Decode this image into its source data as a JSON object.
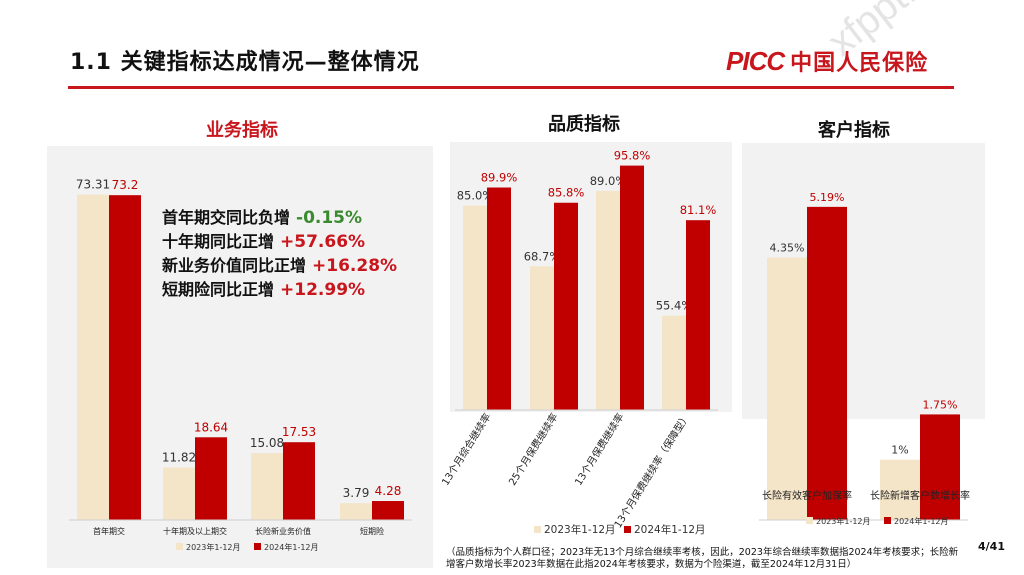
{
  "header": {
    "title": "1.1 关键指标达成情况—整体情况",
    "brand_latin": "PICC",
    "brand_cn": "中国人民保险",
    "watermark": "xfppt.com"
  },
  "sections": {
    "business": "业务指标",
    "quality": "品质指标",
    "customer": "客户指标"
  },
  "kpis": [
    {
      "label": "首年期交同比负增",
      "value": "-0.15%",
      "tone": "neg"
    },
    {
      "label": "十年期同比正增",
      "value": "+57.66%",
      "tone": "pos"
    },
    {
      "label": "新业务价值同比正增",
      "value": "+16.28%",
      "tone": "pos"
    },
    {
      "label": "短期险同比正增",
      "value": "+12.99%",
      "tone": "pos"
    }
  ],
  "colors": {
    "y2023": "#f5e5c8",
    "y2024": "#c00000",
    "accent": "#c8161d"
  },
  "chart_data": [
    {
      "type": "bar",
      "categories": [
        "首年期交",
        "十年期及以上期交",
        "长险新业务价值",
        "短期险"
      ],
      "series": [
        {
          "name": "2023年1-12月",
          "values": [
            73.31,
            11.82,
            15.08,
            3.79
          ],
          "labels": [
            "73.31",
            "11.82",
            "15.08",
            "3.79"
          ]
        },
        {
          "name": "2024年1-12月",
          "values": [
            73.2,
            18.64,
            17.53,
            4.28
          ],
          "labels": [
            "73.2",
            "18.64",
            "17.53",
            "4.28"
          ]
        }
      ],
      "ylim": [
        0,
        80
      ],
      "legend": "bottom"
    },
    {
      "type": "bar",
      "categories": [
        "13个月综合继续率",
        "25个月保费继续率",
        "13个月保费继续率",
        "13个月保费继续率（保障型）"
      ],
      "series": [
        {
          "name": "2023年1-12月",
          "values": [
            85.0,
            68.7,
            89.0,
            55.4
          ],
          "labels": [
            "85.0%",
            "68.7%",
            "89.0%",
            "55.4%"
          ]
        },
        {
          "name": "2024年1-12月",
          "values": [
            89.9,
            85.8,
            95.8,
            81.1
          ],
          "labels": [
            "89.9%",
            "85.8%",
            "95.8%",
            "81.1%"
          ]
        }
      ],
      "ylim": [
        30,
        100
      ],
      "legend": "bottom"
    },
    {
      "type": "bar",
      "categories": [
        "长险有效客户加保率",
        "长险新增客户数增长率"
      ],
      "series": [
        {
          "name": "2023年1-12月",
          "values": [
            4.35,
            1.0
          ],
          "labels": [
            "4.35%",
            "1%"
          ]
        },
        {
          "name": "2024年1-12月",
          "values": [
            5.19,
            1.75
          ],
          "labels": [
            "5.19%",
            "1.75%"
          ]
        }
      ],
      "ylim": [
        0,
        6
      ],
      "legend": "bottom"
    }
  ],
  "footnote": "（品质指标为个人群口径；2023年无13个月综合继续率考核，因此，2023年综合继续率数据指2024年考核要求；长险新增客户数增长率2023年数据在此指2024年考核要求，数据为个险渠道，截至2024年12月31日）",
  "page": "4/41"
}
